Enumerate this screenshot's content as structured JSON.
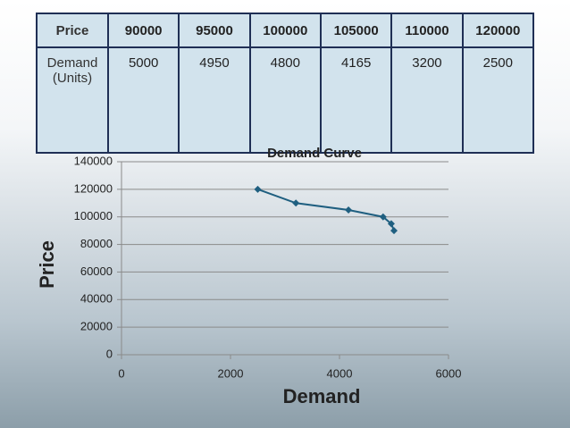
{
  "table": {
    "header": [
      "Price",
      "90000",
      "95000",
      "100000",
      "105000",
      "110000",
      "120000"
    ],
    "rows": [
      [
        "Demand (Units)",
        "5000",
        "4950",
        "4800",
        "4165",
        "3200",
        "2500"
      ]
    ]
  },
  "chart_data": {
    "type": "line",
    "title": "Demand Curve",
    "x_label": "Demand",
    "y_label": "Price",
    "x": [
      5000,
      4950,
      4800,
      4165,
      3200,
      2500
    ],
    "values": [
      90000,
      95000,
      100000,
      105000,
      110000,
      120000
    ],
    "color": "#1f5f80",
    "markers": true,
    "xlim": [
      0,
      6000
    ],
    "xticks": [
      0,
      2000,
      4000,
      6000
    ],
    "ylim": [
      0,
      140000
    ],
    "yticks": [
      0,
      20000,
      40000,
      60000,
      80000,
      100000,
      120000,
      140000
    ],
    "grid": true
  }
}
